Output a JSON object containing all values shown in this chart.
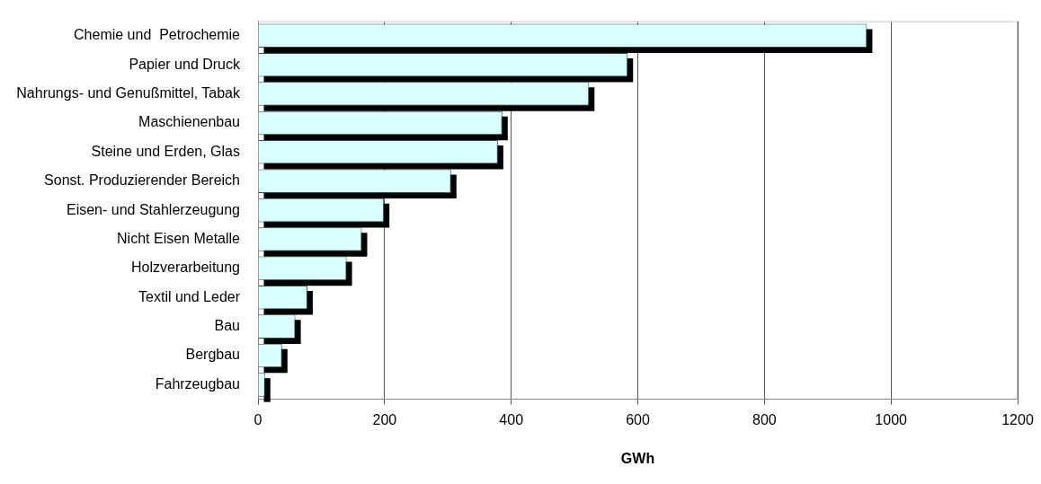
{
  "chart_data": {
    "type": "bar",
    "orientation": "horizontal",
    "xlabel": "GWh",
    "categories": [
      "Chemie und  Petrochemie",
      "Papier und Druck",
      "Nahrungs- und Genußmittel, Tabak",
      "Maschienenbau",
      "Steine und Erden, Glas",
      "Sonst. Produzierender Bereich",
      "Eisen- und Stahlerzeugung",
      "Nicht Eisen Metalle",
      "Holzverarbeitung",
      "Textil und Leder",
      "Bau",
      "Bergbau",
      "Fahrzeugbau"
    ],
    "values": [
      962,
      584,
      523,
      386,
      379,
      305,
      199,
      164,
      140,
      78,
      59,
      38,
      11
    ],
    "color": "#d9ffff",
    "xlim": [
      0,
      1200
    ],
    "xticks": [
      0,
      200,
      400,
      600,
      800,
      1000,
      1200
    ],
    "grid": "x",
    "legend": false
  }
}
